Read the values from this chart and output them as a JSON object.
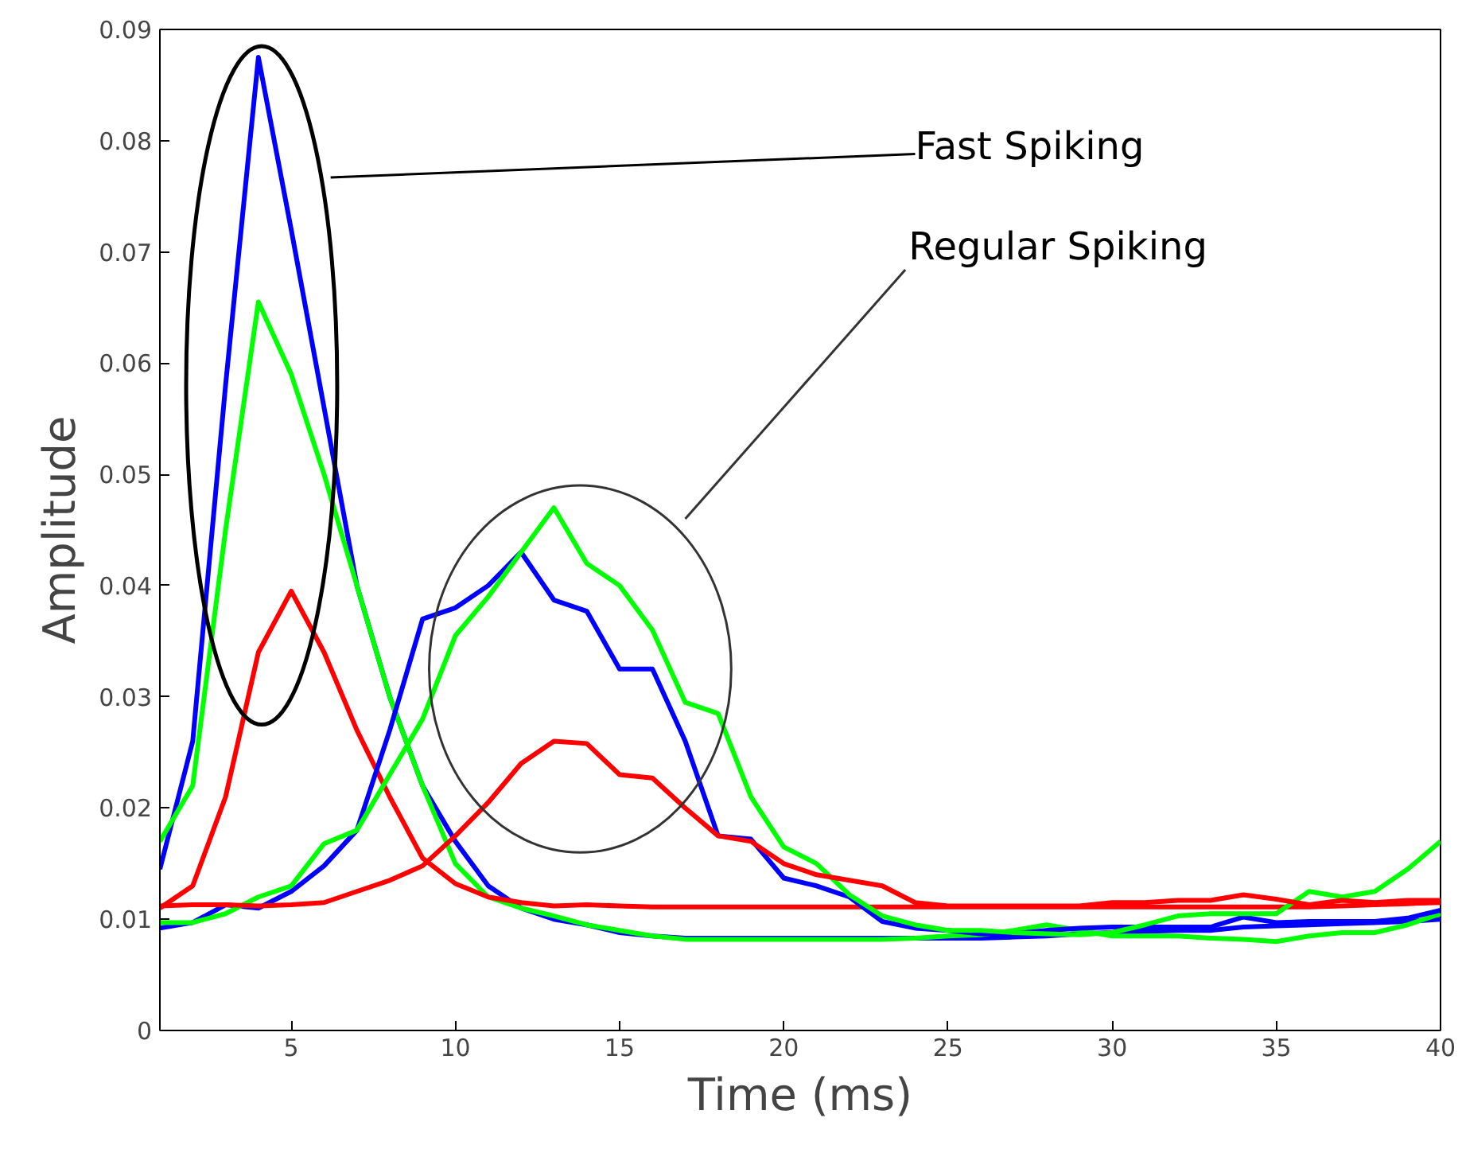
{
  "chart_data": {
    "type": "line",
    "xlabel": "Time (ms)",
    "ylabel": "Amplitude",
    "annotations": [
      "Fast Spiking",
      "Regular Spiking"
    ],
    "x": [
      1,
      2,
      3,
      4,
      5,
      6,
      7,
      8,
      9,
      10,
      11,
      12,
      13,
      14,
      15,
      16,
      17,
      18,
      19,
      20,
      21,
      22,
      23,
      24,
      25,
      26,
      27,
      28,
      29,
      30,
      31,
      32,
      33,
      34,
      35,
      36,
      37,
      38,
      39,
      40
    ],
    "series": [
      {
        "color": "#0000ff",
        "values": [
          0.0145,
          0.026,
          0.058,
          0.0875,
          0.072,
          0.056,
          0.04,
          0.03,
          0.022,
          0.017,
          0.013,
          0.011,
          0.01,
          0.0095,
          0.0088,
          0.0085,
          0.0083,
          0.0083,
          0.0083,
          0.0083,
          0.0083,
          0.0083,
          0.0083,
          0.0083,
          0.0083,
          0.0083,
          0.0084,
          0.0085,
          0.0087,
          0.0088,
          0.0089,
          0.009,
          0.009,
          0.0093,
          0.0094,
          0.0095,
          0.0096,
          0.0097,
          0.0098,
          0.01
        ]
      },
      {
        "color": "#00ff00",
        "values": [
          0.017,
          0.022,
          0.045,
          0.0655,
          0.059,
          0.05,
          0.04,
          0.03,
          0.022,
          0.015,
          0.012,
          0.011,
          0.0103,
          0.0095,
          0.009,
          0.0085,
          0.0082,
          0.0082,
          0.0082,
          0.0082,
          0.0082,
          0.0082,
          0.0082,
          0.0083,
          0.0085,
          0.0086,
          0.009,
          0.0095,
          0.009,
          0.0085,
          0.0085,
          0.0085,
          0.0083,
          0.0082,
          0.008,
          0.0085,
          0.0088,
          0.0088,
          0.0095,
          0.0105
        ]
      },
      {
        "color": "#ff0000",
        "values": [
          0.011,
          0.013,
          0.021,
          0.034,
          0.0395,
          0.034,
          0.027,
          0.021,
          0.0155,
          0.0132,
          0.012,
          0.0115,
          0.0112,
          0.0113,
          0.0112,
          0.0111,
          0.0111,
          0.0111,
          0.0111,
          0.0111,
          0.0111,
          0.0111,
          0.0111,
          0.0111,
          0.0111,
          0.0111,
          0.0111,
          0.0111,
          0.0111,
          0.0111,
          0.0111,
          0.0111,
          0.0111,
          0.0111,
          0.0111,
          0.0111,
          0.0112,
          0.0113,
          0.0114,
          0.0115
        ]
      },
      {
        "color": "#0000ff",
        "values": [
          0.0092,
          0.0097,
          0.0113,
          0.011,
          0.0125,
          0.0148,
          0.018,
          0.027,
          0.037,
          0.038,
          0.04,
          0.043,
          0.0387,
          0.0377,
          0.0325,
          0.0325,
          0.026,
          0.0175,
          0.0172,
          0.0137,
          0.013,
          0.012,
          0.0098,
          0.0092,
          0.009,
          0.0087,
          0.0087,
          0.009,
          0.0092,
          0.0093,
          0.0093,
          0.0093,
          0.0093,
          0.0102,
          0.0097,
          0.0098,
          0.0098,
          0.0098,
          0.0101,
          0.0108
        ]
      },
      {
        "color": "#00ff00",
        "values": [
          0.0097,
          0.0097,
          0.0105,
          0.012,
          0.013,
          0.0168,
          0.018,
          0.023,
          0.028,
          0.0355,
          0.039,
          0.043,
          0.047,
          0.042,
          0.04,
          0.036,
          0.0295,
          0.0285,
          0.021,
          0.0165,
          0.015,
          0.0122,
          0.0103,
          0.0095,
          0.009,
          0.009,
          0.0088,
          0.0087,
          0.0086,
          0.0088,
          0.0095,
          0.0103,
          0.0105,
          0.0105,
          0.0105,
          0.0125,
          0.012,
          0.0125,
          0.0145,
          0.017
        ]
      },
      {
        "color": "#ff0000",
        "values": [
          0.0112,
          0.0113,
          0.0113,
          0.0112,
          0.0113,
          0.0115,
          0.0125,
          0.0135,
          0.0148,
          0.0175,
          0.0205,
          0.024,
          0.026,
          0.0258,
          0.023,
          0.0227,
          0.02,
          0.0175,
          0.017,
          0.015,
          0.014,
          0.0135,
          0.013,
          0.0115,
          0.0112,
          0.0112,
          0.0112,
          0.0112,
          0.0112,
          0.0115,
          0.0115,
          0.0117,
          0.0117,
          0.0122,
          0.0118,
          0.0113,
          0.0117,
          0.0115,
          0.0117,
          0.0117
        ]
      }
    ],
    "xlim": [
      1,
      40
    ],
    "ylim": [
      0,
      0.09
    ],
    "xticks": [
      5,
      10,
      15,
      20,
      25,
      30,
      35,
      40
    ],
    "yticks": [
      0,
      0.01,
      0.02,
      0.03,
      0.04,
      0.05,
      0.06,
      0.07,
      0.08,
      0.09
    ],
    "line_style": "solid"
  }
}
